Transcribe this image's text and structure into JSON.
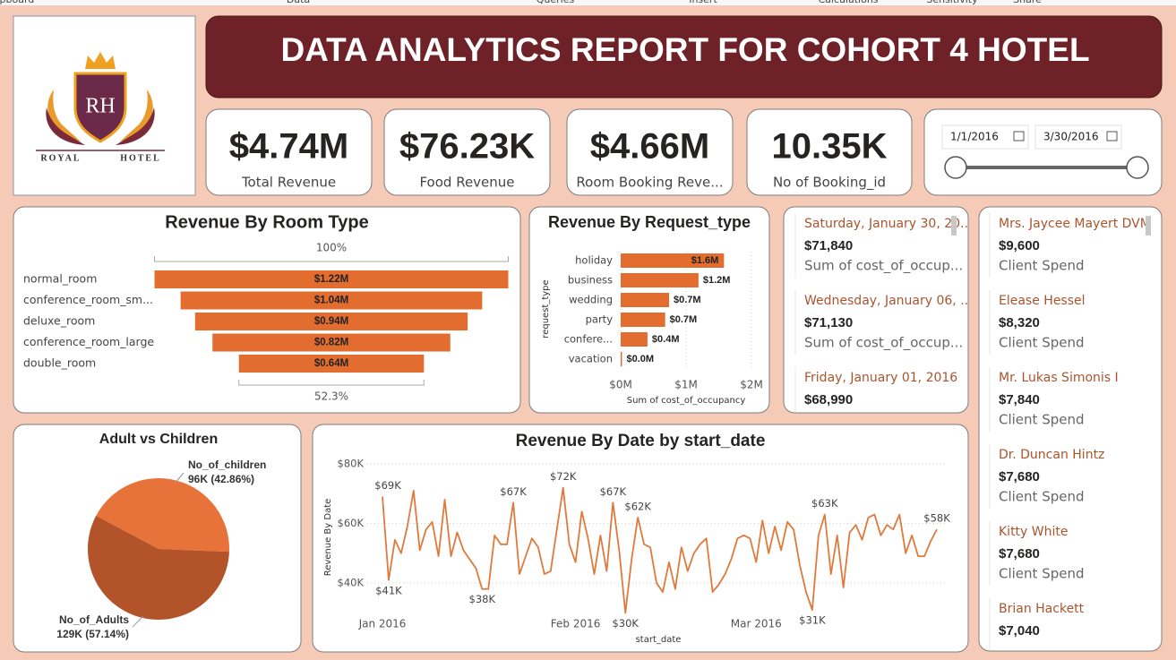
{
  "ribbon": [
    "Clipboard",
    "Data",
    "Queries",
    "Insert",
    "Calculations",
    "Sensitivity",
    "Share"
  ],
  "logo": {
    "monogram": "RH",
    "left_word": "ROYAL",
    "right_word": "HOTEL"
  },
  "header": {
    "title": "DATA ANALYTICS REPORT FOR COHORT 4 HOTEL"
  },
  "kpis": [
    {
      "value": "$4.74M",
      "label": "Total Revenue"
    },
    {
      "value": "$76.23K",
      "label": "Food Revenue"
    },
    {
      "value": "$4.66M",
      "label": "Room Booking Reve..."
    },
    {
      "value": "10.35K",
      "label": "No of  Booking_id"
    }
  ],
  "date_slicer": {
    "start": "1/1/2016",
    "end": "3/30/2016"
  },
  "multi_row_card": [
    {
      "title": "Saturday, January 30, 20...",
      "value": "$71,840",
      "label": "Sum of cost_of_occup..."
    },
    {
      "title": "Wednesday, January 06, ...",
      "value": "$71,130",
      "label": "Sum of cost_of_occup..."
    },
    {
      "title": "Friday, January 01, 2016",
      "value": "$68,990"
    }
  ],
  "client_list": [
    {
      "title": "Mrs. Jaycee Mayert DVM",
      "value": "$9,600",
      "label": "Client Spend"
    },
    {
      "title": "Elease Hessel",
      "value": "$8,320",
      "label": "Client Spend"
    },
    {
      "title": "Mr. Lukas Simonis I",
      "value": "$7,840",
      "label": "Client Spend"
    },
    {
      "title": "Dr. Duncan Hintz",
      "value": "$7,680",
      "label": "Client Spend"
    },
    {
      "title": "Kitty White",
      "value": "$7,680",
      "label": "Client Spend"
    },
    {
      "title": "Brian Hackett",
      "value": "$7,040"
    }
  ],
  "chart_data": [
    {
      "type": "funnel",
      "title": "Revenue By Room Type",
      "categories": [
        "normal_room",
        "conference_room_sm...",
        "deluxe_room",
        "conference_room_large",
        "double_room"
      ],
      "values": [
        1220000,
        1040000,
        940000,
        820000,
        638000
      ],
      "value_labels": [
        "$1.22M",
        "$1.04M",
        "$0.94M",
        "$0.82M",
        "$0.64M"
      ],
      "top_label": "100%",
      "bottom_label": "52.3%",
      "color": "#e36c2f"
    },
    {
      "type": "bar",
      "title": "Revenue By Request_type",
      "categories": [
        "holiday",
        "business",
        "wedding",
        "party",
        "confere...",
        "vacation"
      ],
      "values": [
        1580000,
        1190000,
        740000,
        680000,
        410000,
        20000
      ],
      "value_labels": [
        "$1.6M",
        "$1.2M",
        "$0.7M",
        "$0.7M",
        "$0.4M",
        "$0.0M"
      ],
      "xlim": [
        0,
        2000000
      ],
      "xticks": [
        {
          "value": 0,
          "label": "$0M"
        },
        {
          "value": 1000000,
          "label": "$1M"
        },
        {
          "value": 2000000,
          "label": "$2M"
        }
      ],
      "x_label": "Sum of cost_of_occupancy",
      "y_label": "request_type",
      "color": "#e36c2f",
      "grid": true
    },
    {
      "type": "pie",
      "title": "Adult vs Children",
      "categories": [
        "No_of_children",
        "No_of_Adults"
      ],
      "values": [
        96420,
        128560
      ],
      "value_labels": [
        "96K (42.86%)",
        "129K (57.14%)"
      ],
      "colors": [
        "#e8733a",
        "#b3532a"
      ]
    },
    {
      "type": "line",
      "title": "Revenue By Date by start_date",
      "categories": [
        "Jan 2016",
        null,
        null,
        null,
        null,
        null,
        null,
        null,
        null,
        null,
        null,
        null,
        null,
        null,
        null,
        null,
        null,
        null,
        null,
        null,
        null,
        null,
        null,
        null,
        null,
        null,
        null,
        null,
        null,
        null,
        null,
        "Feb 2016",
        null,
        null,
        null,
        null,
        null,
        null,
        null,
        null,
        null,
        null,
        null,
        null,
        null,
        null,
        null,
        null,
        null,
        null,
        null,
        null,
        null,
        null,
        null,
        null,
        null,
        null,
        null,
        null,
        "Mar 2016",
        null,
        null,
        null,
        null,
        null,
        null,
        null,
        null,
        null,
        null,
        null,
        null,
        null,
        null,
        null,
        null,
        null,
        null,
        null,
        null,
        null,
        null,
        null,
        null,
        null,
        null,
        null,
        null,
        null
      ],
      "series": [
        {
          "name": "Revenue By Date",
          "color": "#e07a3c",
          "values": [
            69000,
            41000,
            54500,
            50000,
            59000,
            71000,
            51000,
            58000,
            60500,
            49000,
            68000,
            49000,
            57000,
            51000,
            48000,
            45000,
            38000,
            38000,
            56000,
            53000,
            53000,
            67000,
            43000,
            49000,
            55000,
            52000,
            43000,
            44000,
            58000,
            72000,
            53000,
            47000,
            64000,
            55000,
            43000,
            56000,
            44000,
            67000,
            51000,
            30000,
            48000,
            62000,
            53000,
            52000,
            40000,
            37000,
            47000,
            38000,
            52000,
            44000,
            50000,
            53000,
            55000,
            37000,
            39500,
            43000,
            48000,
            55000,
            56000,
            55000,
            47000,
            61000,
            50000,
            59000,
            51000,
            60500,
            58000,
            46000,
            37000,
            31000,
            56000,
            63000,
            43000,
            56000,
            38500,
            57000,
            59500,
            54500,
            62000,
            63000,
            56000,
            59500,
            58000,
            63000,
            50000,
            56000,
            49000,
            49000,
            54000,
            58000
          ],
          "value_labels": [
            "$69K",
            "$41K",
            null,
            null,
            null,
            null,
            null,
            null,
            null,
            null,
            null,
            null,
            null,
            null,
            null,
            null,
            "$38K",
            null,
            null,
            null,
            null,
            "$67K",
            null,
            null,
            null,
            null,
            null,
            null,
            null,
            "$72K",
            null,
            null,
            null,
            null,
            null,
            null,
            null,
            "$67K",
            null,
            "$30K",
            null,
            "$62K",
            null,
            null,
            null,
            null,
            null,
            null,
            null,
            null,
            null,
            null,
            null,
            null,
            null,
            null,
            null,
            null,
            null,
            null,
            null,
            null,
            null,
            null,
            null,
            null,
            null,
            null,
            null,
            "$31K",
            null,
            "$63K",
            null,
            null,
            null,
            null,
            null,
            null,
            null,
            null,
            null,
            null,
            null,
            null,
            null,
            null,
            null,
            null,
            null,
            "$58K"
          ]
        }
      ],
      "ylim": [
        28000,
        80000
      ],
      "yticks": [
        {
          "value": 40000,
          "label": "$40K"
        },
        {
          "value": 60000,
          "label": "$60K"
        },
        {
          "value": 80000,
          "label": "$80K"
        }
      ],
      "x_label": "start_date",
      "y_label": "Revenue By Date",
      "grid": true
    }
  ]
}
